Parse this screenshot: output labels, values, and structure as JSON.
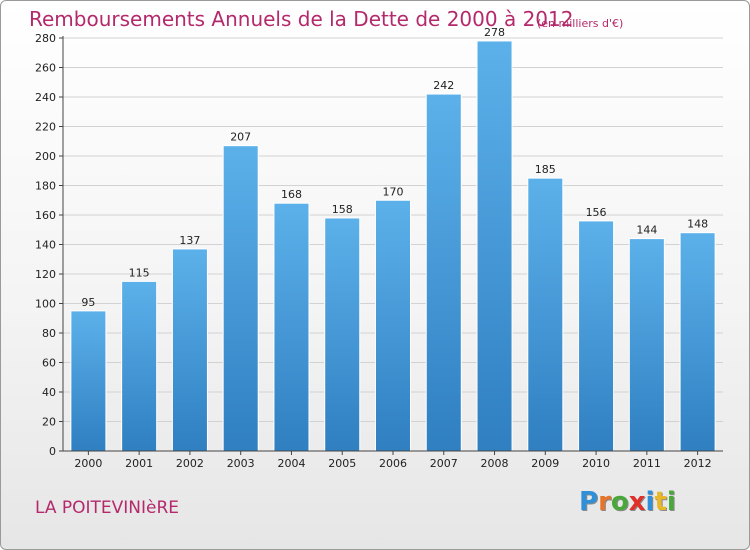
{
  "chart_data": {
    "type": "bar",
    "title": "Remboursements Annuels de la Dette de 2000 à 2012",
    "subtitle": "(en milliers d'€)",
    "xlabel": "",
    "ylabel": "",
    "categories": [
      "2000",
      "2001",
      "2002",
      "2003",
      "2004",
      "2005",
      "2006",
      "2007",
      "2008",
      "2009",
      "2010",
      "2011",
      "2012"
    ],
    "values": [
      95,
      115,
      137,
      207,
      168,
      158,
      170,
      242,
      278,
      185,
      156,
      144,
      148
    ],
    "ylim": [
      0,
      280
    ],
    "yticks": [
      0,
      20,
      40,
      60,
      80,
      100,
      120,
      140,
      160,
      180,
      200,
      220,
      240,
      260,
      280
    ],
    "grid": true,
    "bar_color": "#4ea3e0"
  },
  "footer": {
    "commune": "LA POITEVINIèRE",
    "logo_letters": [
      "P",
      "r",
      "o",
      "x",
      "i",
      "t",
      "i"
    ],
    "logo_colors": [
      "#2f8fd8",
      "#e8742a",
      "#4aa83a",
      "#e0302a",
      "#2f8fd8",
      "#e8b82a",
      "#4aa83a"
    ]
  }
}
